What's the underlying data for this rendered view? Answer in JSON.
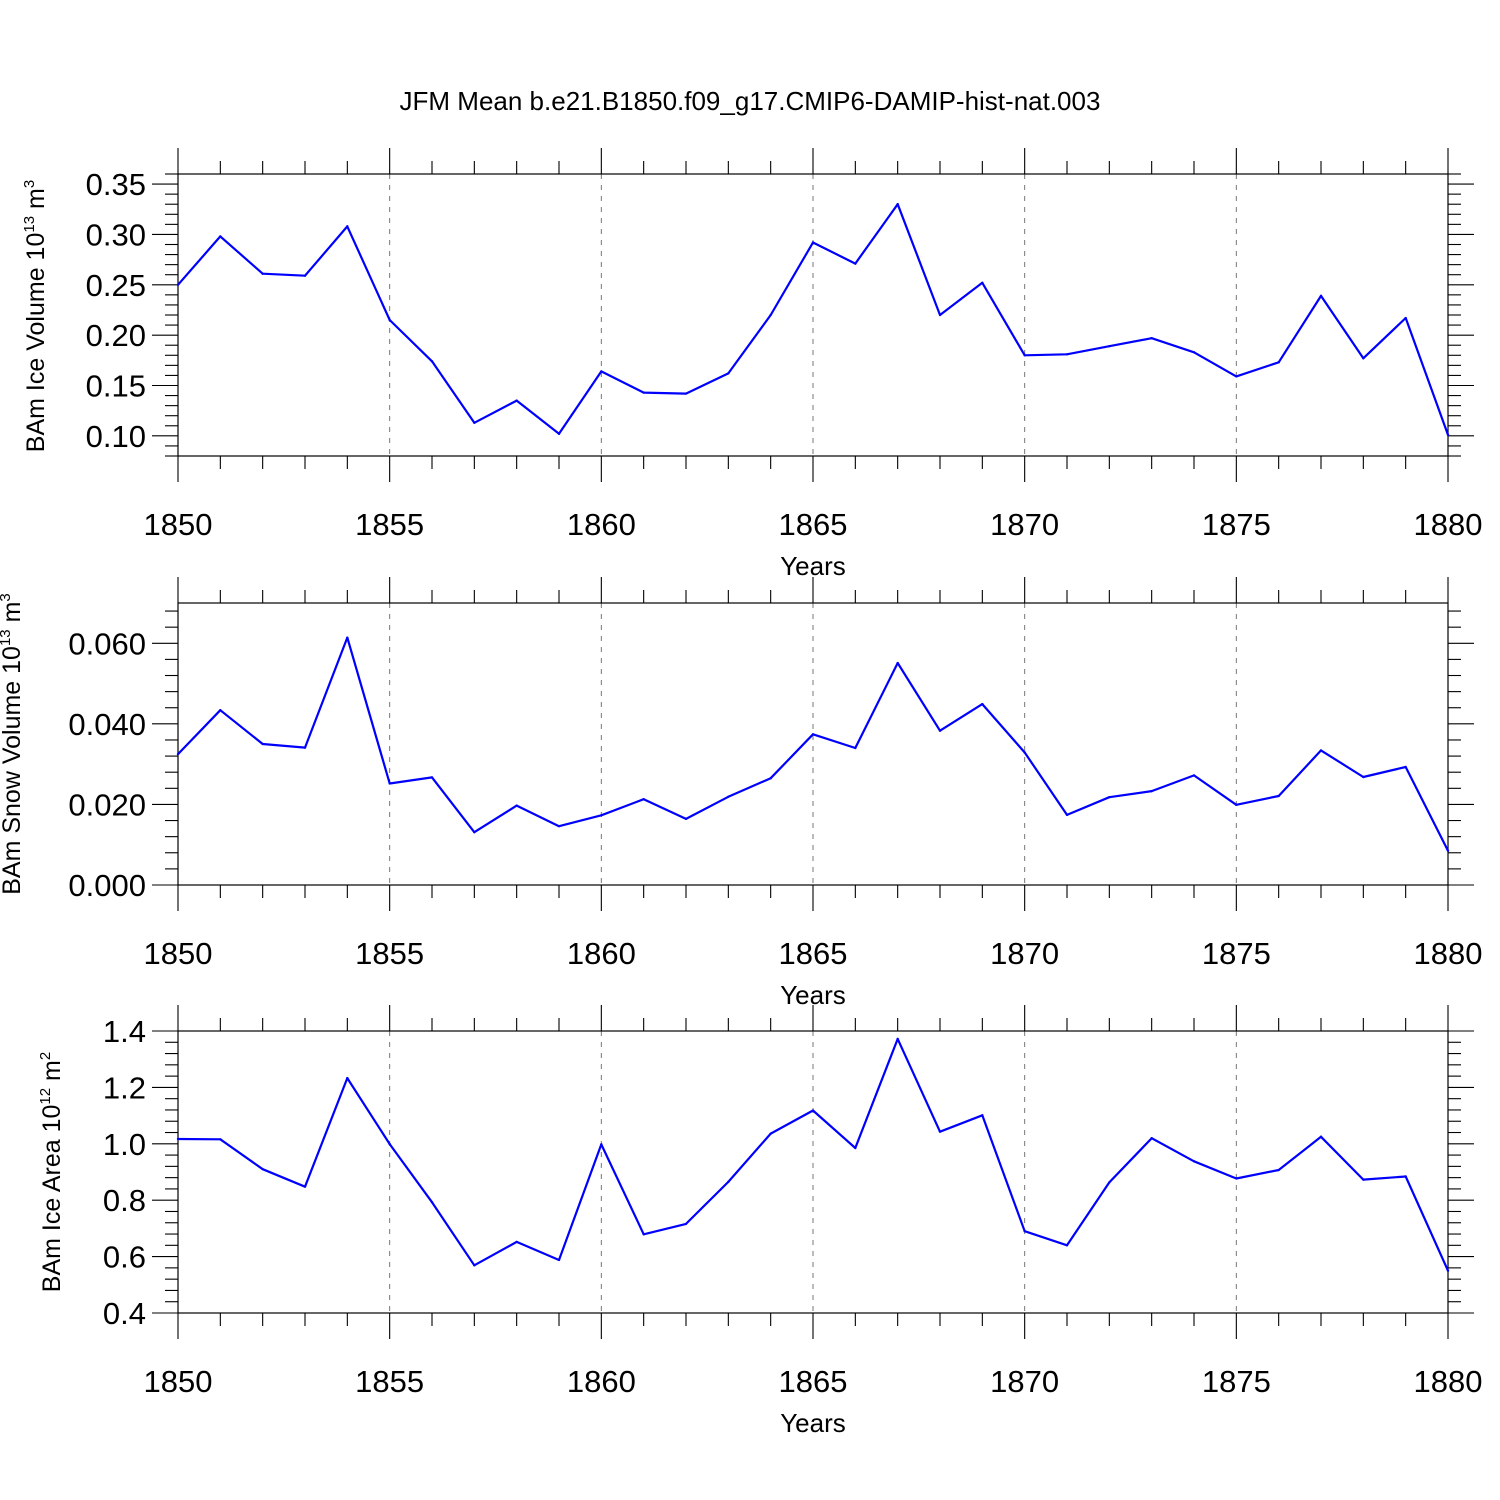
{
  "page_title": "JFM Mean b.e21.B1850.f09_g17.CMIP6-DAMIP-hist-nat.003",
  "colors": {
    "line": "#0000ff",
    "grid": "#777777"
  },
  "chart_data": [
    {
      "type": "line",
      "xlabel": "Years",
      "ylabel": "BAm Ice Volume 10",
      "ylabel_exp": "13",
      "ylabel_unit": " m",
      "ylabel_unit_exp": "3",
      "xlim": [
        1850,
        1880
      ],
      "ylim": [
        0.08,
        0.36
      ],
      "xticks": [
        1850,
        1855,
        1860,
        1865,
        1870,
        1875,
        1880
      ],
      "xtick_labels": [
        "1850",
        "1855",
        "1860",
        "1865",
        "1870",
        "1875",
        "1880"
      ],
      "yticks": [
        0.1,
        0.15,
        0.2,
        0.25,
        0.3,
        0.35
      ],
      "ytick_labels": [
        "0.10",
        "0.15",
        "0.20",
        "0.25",
        "0.30",
        "0.35"
      ],
      "grid": "vertical dashed at major x ticks",
      "x": [
        1850,
        1851,
        1852,
        1853,
        1854,
        1855,
        1856,
        1857,
        1858,
        1859,
        1860,
        1861,
        1862,
        1863,
        1864,
        1865,
        1866,
        1867,
        1868,
        1869,
        1870,
        1871,
        1872,
        1873,
        1874,
        1875,
        1876,
        1877,
        1878,
        1879,
        1880
      ],
      "values": [
        0.25,
        0.298,
        0.261,
        0.259,
        0.308,
        0.215,
        0.174,
        0.113,
        0.135,
        0.102,
        0.164,
        0.143,
        0.142,
        0.162,
        0.22,
        0.292,
        0.271,
        0.33,
        0.22,
        0.252,
        0.18,
        0.181,
        0.189,
        0.197,
        0.183,
        0.159,
        0.173,
        0.239,
        0.177,
        0.217,
        0.101
      ]
    },
    {
      "type": "line",
      "xlabel": "Years",
      "ylabel": "BAm Snow Volume 10",
      "ylabel_exp": "13",
      "ylabel_unit": " m",
      "ylabel_unit_exp": "3",
      "xlim": [
        1850,
        1880
      ],
      "ylim": [
        0.0,
        0.07
      ],
      "xticks": [
        1850,
        1855,
        1860,
        1865,
        1870,
        1875,
        1880
      ],
      "xtick_labels": [
        "1850",
        "1855",
        "1860",
        "1865",
        "1870",
        "1875",
        "1880"
      ],
      "yticks": [
        0.0,
        0.02,
        0.04,
        0.06
      ],
      "ytick_labels": [
        "0.000",
        "0.020",
        "0.040",
        "0.060"
      ],
      "grid": "vertical dashed at major x ticks",
      "x": [
        1850,
        1851,
        1852,
        1853,
        1854,
        1855,
        1856,
        1857,
        1858,
        1859,
        1860,
        1861,
        1862,
        1863,
        1864,
        1865,
        1866,
        1867,
        1868,
        1869,
        1870,
        1871,
        1872,
        1873,
        1874,
        1875,
        1876,
        1877,
        1878,
        1879,
        1880
      ],
      "values": [
        0.0325,
        0.0434,
        0.035,
        0.0341,
        0.0614,
        0.0252,
        0.0267,
        0.0131,
        0.0197,
        0.0146,
        0.0173,
        0.0213,
        0.0164,
        0.0219,
        0.0265,
        0.0374,
        0.034,
        0.0551,
        0.0383,
        0.0449,
        0.0329,
        0.0174,
        0.0218,
        0.0233,
        0.0272,
        0.0199,
        0.0221,
        0.0334,
        0.0268,
        0.0293,
        0.0085
      ]
    },
    {
      "type": "line",
      "xlabel": "Years",
      "ylabel": "BAm Ice Area 10",
      "ylabel_exp": "12",
      "ylabel_unit": " m",
      "ylabel_unit_exp": "2",
      "xlim": [
        1850,
        1880
      ],
      "ylim": [
        0.4,
        1.4
      ],
      "xticks": [
        1850,
        1855,
        1860,
        1865,
        1870,
        1875,
        1880
      ],
      "xtick_labels": [
        "1850",
        "1855",
        "1860",
        "1865",
        "1870",
        "1875",
        "1880"
      ],
      "yticks": [
        0.4,
        0.6,
        0.8,
        1.0,
        1.2,
        1.4
      ],
      "ytick_labels": [
        "0.4",
        "0.6",
        "0.8",
        "1.0",
        "1.2",
        "1.4"
      ],
      "grid": "vertical dashed at major x ticks",
      "x": [
        1850,
        1851,
        1852,
        1853,
        1854,
        1855,
        1856,
        1857,
        1858,
        1859,
        1860,
        1861,
        1862,
        1863,
        1864,
        1865,
        1866,
        1867,
        1868,
        1869,
        1870,
        1871,
        1872,
        1873,
        1874,
        1875,
        1876,
        1877,
        1878,
        1879,
        1880
      ],
      "values": [
        1.017,
        1.016,
        0.91,
        0.848,
        1.233,
        0.999,
        0.793,
        0.569,
        0.652,
        0.588,
        0.998,
        0.679,
        0.716,
        0.865,
        1.036,
        1.118,
        0.985,
        1.372,
        1.043,
        1.101,
        0.69,
        0.64,
        0.863,
        1.02,
        0.938,
        0.877,
        0.907,
        1.025,
        0.873,
        0.884,
        0.55
      ]
    }
  ]
}
